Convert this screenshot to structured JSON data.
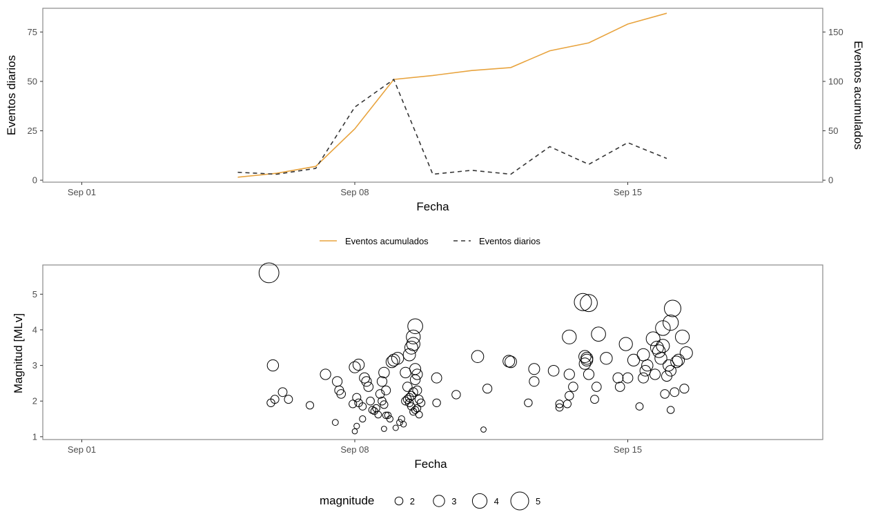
{
  "chart_data": [
    {
      "type": "line",
      "xlabel": "Fecha",
      "ylabel": "Eventos diarios",
      "ylabel_right": "Eventos acumulados",
      "x_ticks": [
        "Sep 01",
        "Sep 08",
        "Sep 15"
      ],
      "y_ticks": [
        "0",
        "25",
        "50",
        "75"
      ],
      "y2_ticks": [
        "0",
        "50",
        "100",
        "150"
      ],
      "xlim": [
        "2024-08-31",
        "2024-09-20"
      ],
      "ylim": [
        -1,
        87
      ],
      "y2lim": [
        -2,
        174
      ],
      "grid": false,
      "legend_position": "bottom",
      "series": [
        {
          "name": "Eventos acumulados",
          "axis": "right",
          "color": "#e8a33d",
          "linestyle": "solid",
          "x": [
            "2024-09-05",
            "2024-09-06",
            "2024-09-07",
            "2024-09-08",
            "2024-09-09",
            "2024-09-10",
            "2024-09-11",
            "2024-09-12",
            "2024-09-13",
            "2024-09-14",
            "2024-09-15",
            "2024-09-16"
          ],
          "values": [
            3,
            7,
            14,
            52,
            102,
            106,
            111,
            114,
            131,
            139,
            158,
            169
          ]
        },
        {
          "name": "Eventos diarios",
          "axis": "left",
          "color": "#333333",
          "linestyle": "dashed",
          "x": [
            "2024-09-05",
            "2024-09-06",
            "2024-09-07",
            "2024-09-08",
            "2024-09-09",
            "2024-09-10",
            "2024-09-11",
            "2024-09-12",
            "2024-09-13",
            "2024-09-14",
            "2024-09-15",
            "2024-09-16"
          ],
          "values": [
            4,
            3,
            6,
            37,
            51,
            3,
            5,
            3,
            17,
            8,
            19,
            11
          ]
        }
      ]
    },
    {
      "type": "scatter",
      "xlabel": "Fecha",
      "ylabel": "Magnitud [MLv]",
      "x_ticks": [
        "Sep 01",
        "Sep 08",
        "Sep 15"
      ],
      "y_ticks": [
        "1",
        "2",
        "3",
        "4",
        "5"
      ],
      "xlim": [
        "2024-08-31",
        "2024-09-20"
      ],
      "ylim": [
        0.92,
        5.82
      ],
      "grid": false,
      "legend_position": "bottom",
      "size_legend": {
        "title": "magnitude",
        "values": [
          2,
          3,
          4,
          5
        ],
        "labels": [
          "2",
          "3",
          "4",
          "5"
        ]
      },
      "marker": {
        "fill": "none",
        "stroke": "#000000"
      },
      "points": [
        {
          "x": 5.8,
          "mag": 5.6
        },
        {
          "x": 5.9,
          "mag": 3.0
        },
        {
          "x": 5.85,
          "mag": 1.95
        },
        {
          "x": 5.95,
          "mag": 2.05
        },
        {
          "x": 6.15,
          "mag": 2.25
        },
        {
          "x": 6.3,
          "mag": 2.05
        },
        {
          "x": 6.85,
          "mag": 1.88
        },
        {
          "x": 7.25,
          "mag": 2.75
        },
        {
          "x": 7.55,
          "mag": 2.55
        },
        {
          "x": 7.6,
          "mag": 2.3
        },
        {
          "x": 7.65,
          "mag": 2.2
        },
        {
          "x": 7.5,
          "mag": 1.4
        },
        {
          "x": 7.95,
          "mag": 1.92
        },
        {
          "x": 8.0,
          "mag": 2.95
        },
        {
          "x": 8.1,
          "mag": 3.02
        },
        {
          "x": 8.05,
          "mag": 2.1
        },
        {
          "x": 8.1,
          "mag": 1.95
        },
        {
          "x": 8.2,
          "mag": 1.85
        },
        {
          "x": 8.25,
          "mag": 2.65
        },
        {
          "x": 8.3,
          "mag": 2.55
        },
        {
          "x": 8.35,
          "mag": 2.4
        },
        {
          "x": 8.4,
          "mag": 2.0
        },
        {
          "x": 8.45,
          "mag": 1.75
        },
        {
          "x": 8.5,
          "mag": 1.72
        },
        {
          "x": 8.55,
          "mag": 1.8
        },
        {
          "x": 8.6,
          "mag": 1.62
        },
        {
          "x": 8.05,
          "mag": 1.3
        },
        {
          "x": 8.0,
          "mag": 1.15
        },
        {
          "x": 8.2,
          "mag": 1.5
        },
        {
          "x": 8.65,
          "mag": 2.2
        },
        {
          "x": 8.7,
          "mag": 2.0
        },
        {
          "x": 8.75,
          "mag": 1.9
        },
        {
          "x": 8.8,
          "mag": 2.3
        },
        {
          "x": 8.85,
          "mag": 1.6
        },
        {
          "x": 8.9,
          "mag": 1.5
        },
        {
          "x": 8.95,
          "mag": 3.1
        },
        {
          "x": 9.0,
          "mag": 3.15
        },
        {
          "x": 8.7,
          "mag": 2.55
        },
        {
          "x": 8.75,
          "mag": 2.8
        },
        {
          "x": 8.8,
          "mag": 1.6
        },
        {
          "x": 8.75,
          "mag": 1.22
        },
        {
          "x": 9.05,
          "mag": 1.25
        },
        {
          "x": 9.1,
          "mag": 3.2
        },
        {
          "x": 9.15,
          "mag": 1.4
        },
        {
          "x": 9.2,
          "mag": 1.5
        },
        {
          "x": 9.25,
          "mag": 1.35
        },
        {
          "x": 9.3,
          "mag": 2.0
        },
        {
          "x": 9.35,
          "mag": 2.4
        },
        {
          "x": 9.4,
          "mag": 2.1
        },
        {
          "x": 9.45,
          "mag": 1.85
        },
        {
          "x": 9.5,
          "mag": 1.7
        },
        {
          "x": 9.55,
          "mag": 1.75
        },
        {
          "x": 9.6,
          "mag": 1.8
        },
        {
          "x": 9.65,
          "mag": 1.62
        },
        {
          "x": 9.3,
          "mag": 2.8
        },
        {
          "x": 9.4,
          "mag": 3.3
        },
        {
          "x": 9.45,
          "mag": 3.5
        },
        {
          "x": 9.5,
          "mag": 3.8
        },
        {
          "x": 9.55,
          "mag": 4.1
        },
        {
          "x": 9.5,
          "mag": 3.6
        },
        {
          "x": 9.55,
          "mag": 2.9
        },
        {
          "x": 9.6,
          "mag": 2.75
        },
        {
          "x": 9.55,
          "mag": 2.6
        },
        {
          "x": 9.6,
          "mag": 2.3
        },
        {
          "x": 9.35,
          "mag": 2.05
        },
        {
          "x": 9.4,
          "mag": 1.95
        },
        {
          "x": 9.45,
          "mag": 2.15
        },
        {
          "x": 9.5,
          "mag": 2.25
        },
        {
          "x": 9.65,
          "mag": 2.05
        },
        {
          "x": 9.7,
          "mag": 1.95
        },
        {
          "x": 10.1,
          "mag": 2.65
        },
        {
          "x": 10.1,
          "mag": 1.95
        },
        {
          "x": 10.6,
          "mag": 2.18
        },
        {
          "x": 11.15,
          "mag": 3.25
        },
        {
          "x": 11.3,
          "mag": 1.2
        },
        {
          "x": 11.4,
          "mag": 2.35
        },
        {
          "x": 11.95,
          "mag": 3.12
        },
        {
          "x": 12.0,
          "mag": 3.1
        },
        {
          "x": 12.45,
          "mag": 1.95
        },
        {
          "x": 12.6,
          "mag": 2.9
        },
        {
          "x": 12.6,
          "mag": 2.55
        },
        {
          "x": 13.1,
          "mag": 2.85
        },
        {
          "x": 13.25,
          "mag": 1.82
        },
        {
          "x": 13.25,
          "mag": 1.92
        },
        {
          "x": 13.5,
          "mag": 3.8
        },
        {
          "x": 13.5,
          "mag": 2.75
        },
        {
          "x": 13.5,
          "mag": 2.15
        },
        {
          "x": 13.45,
          "mag": 1.92
        },
        {
          "x": 13.6,
          "mag": 2.4
        },
        {
          "x": 13.85,
          "mag": 4.78
        },
        {
          "x": 14.0,
          "mag": 4.75
        },
        {
          "x": 13.9,
          "mag": 3.25
        },
        {
          "x": 13.95,
          "mag": 3.15
        },
        {
          "x": 13.9,
          "mag": 3.05
        },
        {
          "x": 13.95,
          "mag": 3.2
        },
        {
          "x": 14.0,
          "mag": 2.75
        },
        {
          "x": 14.15,
          "mag": 2.05
        },
        {
          "x": 14.2,
          "mag": 2.4
        },
        {
          "x": 14.25,
          "mag": 3.88
        },
        {
          "x": 14.45,
          "mag": 3.2
        },
        {
          "x": 14.75,
          "mag": 2.65
        },
        {
          "x": 14.8,
          "mag": 2.4
        },
        {
          "x": 14.95,
          "mag": 3.6
        },
        {
          "x": 15.0,
          "mag": 2.65
        },
        {
          "x": 15.15,
          "mag": 3.15
        },
        {
          "x": 15.3,
          "mag": 1.85
        },
        {
          "x": 15.4,
          "mag": 3.3
        },
        {
          "x": 15.4,
          "mag": 2.65
        },
        {
          "x": 15.45,
          "mag": 2.85
        },
        {
          "x": 15.5,
          "mag": 3.0
        },
        {
          "x": 15.65,
          "mag": 3.75
        },
        {
          "x": 15.7,
          "mag": 2.75
        },
        {
          "x": 15.75,
          "mag": 3.5
        },
        {
          "x": 15.8,
          "mag": 3.4
        },
        {
          "x": 15.85,
          "mag": 3.2
        },
        {
          "x": 15.9,
          "mag": 4.05
        },
        {
          "x": 15.9,
          "mag": 3.55
        },
        {
          "x": 15.95,
          "mag": 2.2
        },
        {
          "x": 16.0,
          "mag": 2.7
        },
        {
          "x": 16.05,
          "mag": 3.0
        },
        {
          "x": 16.1,
          "mag": 2.85
        },
        {
          "x": 16.1,
          "mag": 4.2
        },
        {
          "x": 16.15,
          "mag": 4.6
        },
        {
          "x": 16.2,
          "mag": 2.25
        },
        {
          "x": 16.25,
          "mag": 3.1
        },
        {
          "x": 16.3,
          "mag": 3.15
        },
        {
          "x": 16.1,
          "mag": 1.75
        },
        {
          "x": 16.4,
          "mag": 3.8
        },
        {
          "x": 16.45,
          "mag": 2.35
        },
        {
          "x": 16.5,
          "mag": 3.35
        }
      ]
    }
  ],
  "legend_line": {
    "items": [
      {
        "label": "Eventos acumulados",
        "color": "#e8a33d",
        "dash": "none"
      },
      {
        "label": "Eventos diarios",
        "color": "#333333",
        "dash": "6 5"
      }
    ]
  }
}
